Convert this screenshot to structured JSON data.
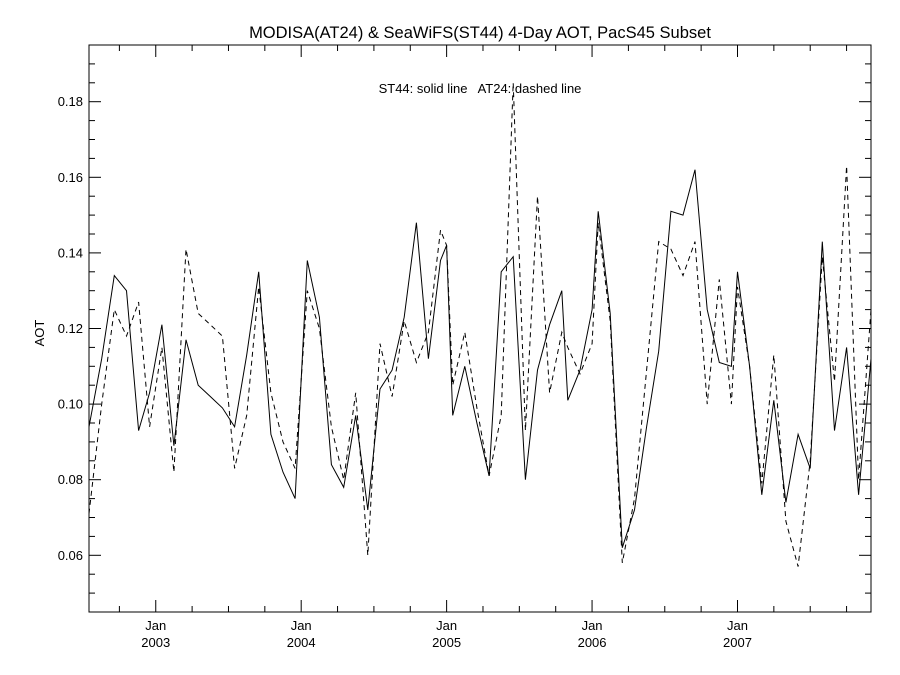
{
  "chart_data": {
    "type": "line",
    "title": "MODISA(AT24) & SeaWiFS(ST44) 4-Day AOT, PacS45 Subset",
    "ylabel": "AOT",
    "xlabel": "",
    "annotation": "ST44: solid line   AT24: dashed line",
    "ylim": [
      0.045,
      0.195
    ],
    "xlim": [
      2002.541,
      2007.918
    ],
    "grid": false,
    "y_ticks": [
      0.06,
      0.08,
      0.1,
      0.12,
      0.14,
      0.16,
      0.18
    ],
    "y_tick_labels": [
      "0.06",
      "0.08",
      "0.10",
      "0.12",
      "0.14",
      "0.16",
      "0.18"
    ],
    "x_major_ticks": [
      {
        "value": 2003.0,
        "month": "Jan",
        "year": "2003"
      },
      {
        "value": 2004.0,
        "month": "Jan",
        "year": "2004"
      },
      {
        "value": 2005.0,
        "month": "Jan",
        "year": "2005"
      },
      {
        "value": 2006.0,
        "month": "Jan",
        "year": "2006"
      },
      {
        "value": 2007.0,
        "month": "Jan",
        "year": "2007"
      }
    ],
    "series": [
      {
        "name": "ST44",
        "style": "solid",
        "color": "#000000",
        "points": [
          [
            2002.541,
            0.094
          ],
          [
            2002.628,
            0.112
          ],
          [
            2002.715,
            0.134
          ],
          [
            2002.799,
            0.13
          ],
          [
            2002.882,
            0.093
          ],
          [
            2002.958,
            0.103
          ],
          [
            2003.042,
            0.121
          ],
          [
            2003.125,
            0.089
          ],
          [
            2003.208,
            0.117
          ],
          [
            2003.292,
            0.105
          ],
          [
            2003.375,
            0.102
          ],
          [
            2003.458,
            0.099
          ],
          [
            2003.542,
            0.094
          ],
          [
            2003.625,
            0.113
          ],
          [
            2003.708,
            0.135
          ],
          [
            2003.792,
            0.092
          ],
          [
            2003.875,
            0.082
          ],
          [
            2003.958,
            0.075
          ],
          [
            2004.042,
            0.138
          ],
          [
            2004.125,
            0.123
          ],
          [
            2004.208,
            0.084
          ],
          [
            2004.292,
            0.078
          ],
          [
            2004.375,
            0.097
          ],
          [
            2004.458,
            0.072
          ],
          [
            2004.542,
            0.104
          ],
          [
            2004.625,
            0.109
          ],
          [
            2004.708,
            0.123
          ],
          [
            2004.792,
            0.148
          ],
          [
            2004.875,
            0.112
          ],
          [
            2004.958,
            0.138
          ],
          [
            2005.0,
            0.142
          ],
          [
            2005.042,
            0.097
          ],
          [
            2005.125,
            0.11
          ],
          [
            2005.208,
            0.095
          ],
          [
            2005.292,
            0.081
          ],
          [
            2005.375,
            0.135
          ],
          [
            2005.458,
            0.139
          ],
          [
            2005.542,
            0.08
          ],
          [
            2005.625,
            0.109
          ],
          [
            2005.708,
            0.121
          ],
          [
            2005.792,
            0.13
          ],
          [
            2005.833,
            0.101
          ],
          [
            2005.917,
            0.109
          ],
          [
            2006.0,
            0.125
          ],
          [
            2006.042,
            0.151
          ],
          [
            2006.125,
            0.124
          ],
          [
            2006.208,
            0.062
          ],
          [
            2006.292,
            0.072
          ],
          [
            2006.375,
            0.094
          ],
          [
            2006.458,
            0.114
          ],
          [
            2006.542,
            0.151
          ],
          [
            2006.625,
            0.15
          ],
          [
            2006.708,
            0.162
          ],
          [
            2006.792,
            0.125
          ],
          [
            2006.875,
            0.111
          ],
          [
            2006.958,
            0.11
          ],
          [
            2007.0,
            0.135
          ],
          [
            2007.083,
            0.11
          ],
          [
            2007.167,
            0.076
          ],
          [
            2007.25,
            0.101
          ],
          [
            2007.333,
            0.074
          ],
          [
            2007.417,
            0.092
          ],
          [
            2007.5,
            0.083
          ],
          [
            2007.583,
            0.143
          ],
          [
            2007.667,
            0.093
          ],
          [
            2007.75,
            0.115
          ],
          [
            2007.833,
            0.076
          ],
          [
            2007.918,
            0.112
          ]
        ]
      },
      {
        "name": "AT24",
        "style": "dashed",
        "color": "#000000",
        "points": [
          [
            2002.541,
            0.071
          ],
          [
            2002.628,
            0.1
          ],
          [
            2002.715,
            0.125
          ],
          [
            2002.799,
            0.118
          ],
          [
            2002.882,
            0.127
          ],
          [
            2002.958,
            0.094
          ],
          [
            2003.042,
            0.115
          ],
          [
            2003.125,
            0.082
          ],
          [
            2003.208,
            0.141
          ],
          [
            2003.292,
            0.124
          ],
          [
            2003.375,
            0.121
          ],
          [
            2003.458,
            0.118
          ],
          [
            2003.542,
            0.083
          ],
          [
            2003.625,
            0.097
          ],
          [
            2003.708,
            0.131
          ],
          [
            2003.792,
            0.103
          ],
          [
            2003.875,
            0.09
          ],
          [
            2003.958,
            0.083
          ],
          [
            2004.042,
            0.13
          ],
          [
            2004.125,
            0.12
          ],
          [
            2004.208,
            0.094
          ],
          [
            2004.292,
            0.08
          ],
          [
            2004.375,
            0.103
          ],
          [
            2004.458,
            0.06
          ],
          [
            2004.542,
            0.116
          ],
          [
            2004.625,
            0.102
          ],
          [
            2004.708,
            0.122
          ],
          [
            2004.792,
            0.111
          ],
          [
            2004.875,
            0.119
          ],
          [
            2004.958,
            0.146
          ],
          [
            2005.0,
            0.142
          ],
          [
            2005.042,
            0.105
          ],
          [
            2005.125,
            0.119
          ],
          [
            2005.208,
            0.099
          ],
          [
            2005.292,
            0.081
          ],
          [
            2005.375,
            0.097
          ],
          [
            2005.458,
            0.185
          ],
          [
            2005.542,
            0.093
          ],
          [
            2005.625,
            0.155
          ],
          [
            2005.708,
            0.103
          ],
          [
            2005.792,
            0.119
          ],
          [
            2005.833,
            0.115
          ],
          [
            2005.917,
            0.108
          ],
          [
            2006.0,
            0.116
          ],
          [
            2006.042,
            0.148
          ],
          [
            2006.125,
            0.122
          ],
          [
            2006.208,
            0.058
          ],
          [
            2006.292,
            0.075
          ],
          [
            2006.375,
            0.109
          ],
          [
            2006.458,
            0.143
          ],
          [
            2006.542,
            0.141
          ],
          [
            2006.625,
            0.134
          ],
          [
            2006.708,
            0.143
          ],
          [
            2006.792,
            0.1
          ],
          [
            2006.875,
            0.133
          ],
          [
            2006.958,
            0.1
          ],
          [
            2007.0,
            0.131
          ],
          [
            2007.083,
            0.11
          ],
          [
            2007.167,
            0.079
          ],
          [
            2007.25,
            0.113
          ],
          [
            2007.333,
            0.069
          ],
          [
            2007.417,
            0.057
          ],
          [
            2007.5,
            0.085
          ],
          [
            2007.583,
            0.139
          ],
          [
            2007.667,
            0.106
          ],
          [
            2007.75,
            0.163
          ],
          [
            2007.833,
            0.08
          ],
          [
            2007.918,
            0.125
          ]
        ]
      }
    ]
  }
}
